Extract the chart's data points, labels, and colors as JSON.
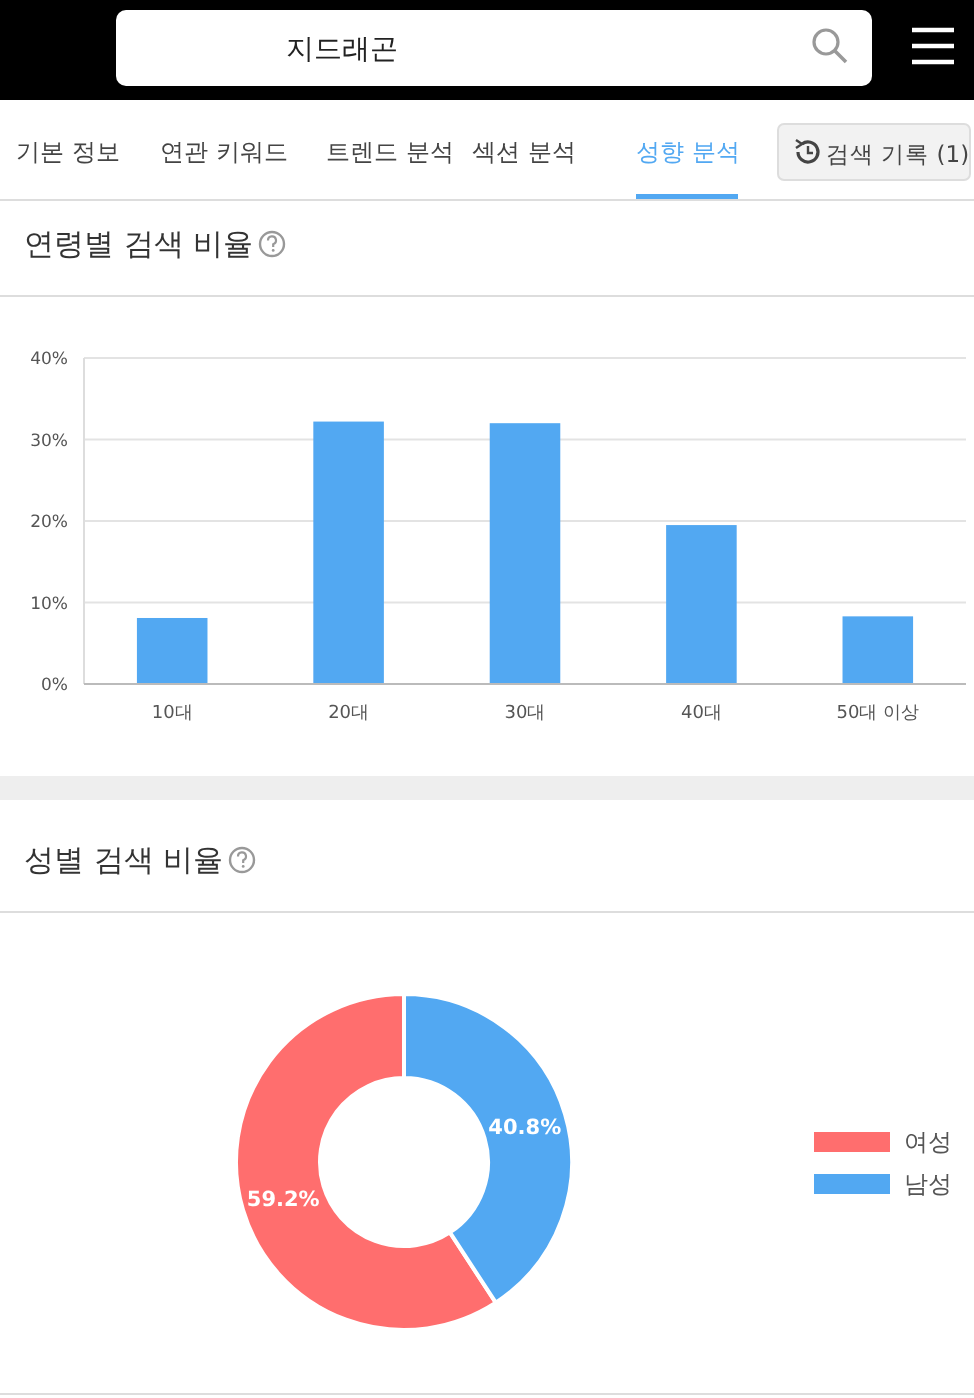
{
  "chart_data": [
    {
      "type": "other",
      "annotations": [
        "지드래곤",
        "기본 정보",
        "연관 키워드",
        "트렌드 분석",
        "섹션 분석",
        "성향 분석",
        "검색 기록 (1)"
      ]
    },
    {
      "type": "bar",
      "title": "연령별 검색 비율",
      "categories": [
        "10대",
        "20대",
        "30대",
        "40대",
        "50대 이상"
      ],
      "values": [
        8.1,
        32.2,
        32.0,
        19.5,
        8.3
      ],
      "color": "#52a8f2",
      "ylim": [
        0,
        40
      ],
      "yticks": [
        {
          "value": 0,
          "label": "0%"
        },
        {
          "value": 10,
          "label": "10%"
        },
        {
          "value": 20,
          "label": "20%"
        },
        {
          "value": 30,
          "label": "30%"
        },
        {
          "value": 40,
          "label": "40%"
        }
      ],
      "grid": "y"
    },
    {
      "type": "donut",
      "title": "성별 검색 비율",
      "categories": [
        "여성",
        "남성"
      ],
      "values": [
        59.2,
        40.8
      ],
      "colors": [
        "#ff6e6e",
        "#52a8f2"
      ],
      "value_labels": [
        "59.2%",
        "40.8%"
      ],
      "legend": "right"
    }
  ]
}
